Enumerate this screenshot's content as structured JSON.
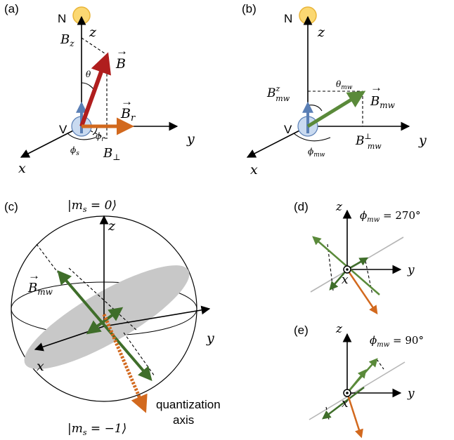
{
  "panels": {
    "a": {
      "tag": "(a)",
      "N": "N",
      "V": "V",
      "z": "z",
      "x": "x",
      "y": "y",
      "Bz": "B",
      "Bz_sub": "z",
      "B": "B",
      "theta": "θ",
      "Br": "B",
      "Br_sub": "r",
      "phi_r": "ϕ",
      "phi_r_sub": "r",
      "phi_s": "ϕ",
      "phi_s_sub": "s",
      "Bperp": "B",
      "Bperp_sub": "⊥"
    },
    "b": {
      "tag": "(b)",
      "N": "N",
      "V": "V",
      "z": "z",
      "x": "x",
      "y": "y",
      "Bmwz": "B",
      "Bmwz_sub": "mw",
      "Bmwz_sup": "z",
      "theta_mw": "θ",
      "theta_mw_sub": "mw",
      "Bmw": "B",
      "Bmw_sub": "mw",
      "phi_mw": "ϕ",
      "phi_mw_sub": "mw",
      "Bmwperp": "B",
      "Bmwperp_sub": "mw",
      "Bmwperp_sup": "⊥"
    },
    "c": {
      "tag": "(c)",
      "top_state": "|m",
      "top_state_sub": "s",
      "top_state_rest": " = 0⟩",
      "bottom_state": "|m",
      "bottom_state_sub": "s",
      "bottom_state_rest": " = −1⟩",
      "z": "z",
      "x": "x",
      "y": "y",
      "Bmw": "B",
      "Bmw_sub": "mw",
      "quant_line1": "quantization",
      "quant_line2": "axis"
    },
    "d": {
      "tag": "(d)",
      "z": "z",
      "x": "x",
      "y": "y",
      "phi": "ϕ",
      "phi_sub": "mw",
      "phi_val": " = 270°"
    },
    "e": {
      "tag": "(e)",
      "z": "z",
      "x": "x",
      "y": "y",
      "phi": "ϕ",
      "phi_sub": "mw",
      "phi_val": " = 90°"
    }
  },
  "colors": {
    "red_arrow": "#b01e1e",
    "orange_arrow": "#d2691e",
    "green_arrow": "#5a8a3a",
    "dark_green": "#3f6e2a",
    "gray_plane": "#c8c8c8",
    "sun_fill": "#fbd872",
    "sun_stroke": "#e9b53a",
    "spin_fill": "#c9daf0",
    "spin_stroke": "#5a7fb5"
  }
}
